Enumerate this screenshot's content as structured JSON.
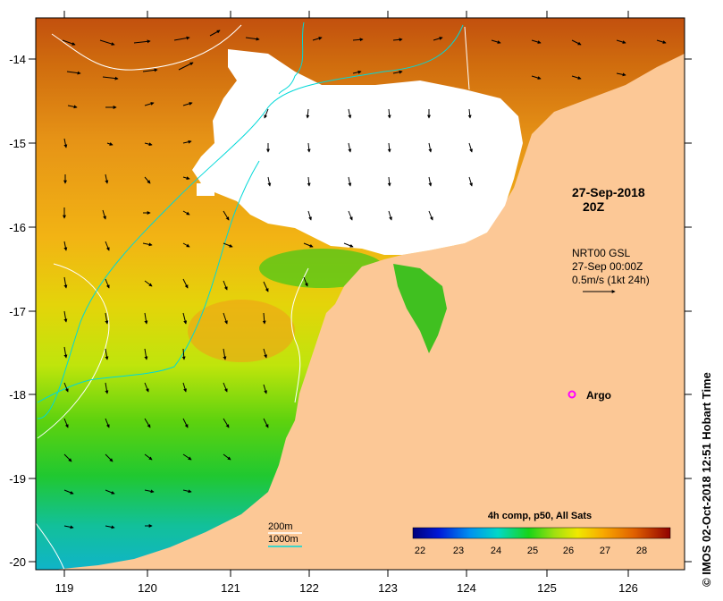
{
  "map": {
    "annotation_date": "27-Sep-2018",
    "annotation_time": "20Z",
    "current_source": "NRT00 GSL",
    "current_time": "27-Sep 00:00Z",
    "current_scale": "0.5m/s (1kt 24h)",
    "argo_label": "Argo",
    "bathy_200": "200m",
    "bathy_1000": "1000m",
    "side_caption": "IMOS 02-Oct-2018 12:51 Hobart Time",
    "copyright_symbol": "©",
    "colorbar_title": "4h comp, p50, All Sats",
    "colorbar_ticks": [
      "22",
      "23",
      "24",
      "25",
      "26",
      "27",
      "28"
    ],
    "lon_ticks": [
      "119",
      "120",
      "121",
      "122",
      "123",
      "124",
      "125",
      "126"
    ],
    "lat_ticks": [
      "-14",
      "-15",
      "-16",
      "-17",
      "-18",
      "-19",
      "-20"
    ],
    "colors": {
      "land": "#fcc896",
      "cloud": "#ffffff",
      "bathy_200": "#ffffff",
      "bathy_1000": "#00d8d8",
      "argo": "#ff00ff"
    }
  }
}
